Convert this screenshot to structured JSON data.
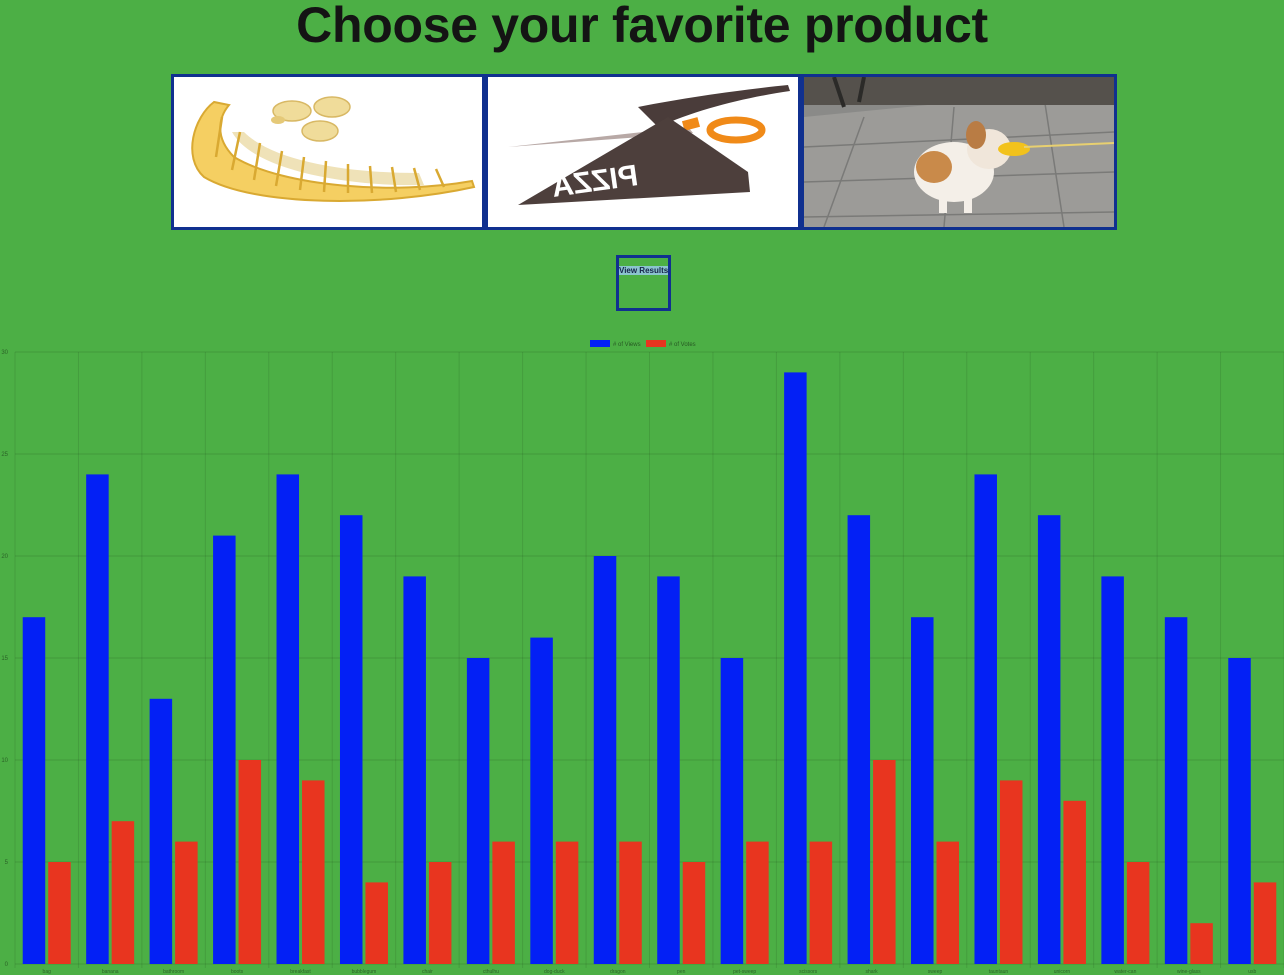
{
  "page": {
    "title": "Choose your favorite product",
    "view_results_label": "View Results"
  },
  "products": [
    {
      "icon": "banana-slicer-image"
    },
    {
      "icon": "pizza-scissors-image"
    },
    {
      "icon": "dog-duck-muzzle-image"
    }
  ],
  "colors": {
    "background": "#4caf45",
    "views": "#0320f5",
    "votes": "#e8351f",
    "border": "#10308f"
  },
  "chart_data": {
    "type": "bar",
    "categories": [
      "bag",
      "banana",
      "bathroom",
      "boots",
      "breakfast",
      "bubblegum",
      "chair",
      "cthulhu",
      "dog-duck",
      "dragon",
      "pen",
      "pet-sweep",
      "scissors",
      "shark",
      "sweep",
      "tauntaun",
      "unicorn",
      "water-can",
      "wine-glass",
      "usb"
    ],
    "series": [
      {
        "name": "# of Views",
        "values": [
          17,
          24,
          13,
          21,
          24,
          22,
          19,
          15,
          16,
          20,
          19,
          15,
          29,
          22,
          17,
          24,
          22,
          19,
          17,
          15
        ]
      },
      {
        "name": "# of Votes",
        "values": [
          5,
          7,
          6,
          10,
          9,
          4,
          5,
          6,
          6,
          6,
          5,
          6,
          6,
          10,
          6,
          9,
          8,
          5,
          2,
          4
        ]
      }
    ],
    "ylim": [
      0,
      30
    ],
    "yticks": [
      0,
      5,
      10,
      15,
      20,
      25,
      30
    ],
    "grid": true,
    "legend": "top-center"
  }
}
